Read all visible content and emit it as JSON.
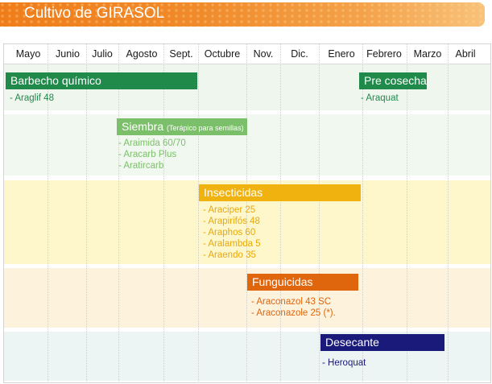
{
  "header": {
    "title": "Cultivo de GIRASOL"
  },
  "months": [
    "Mayo",
    "Junio",
    "Julio",
    "Agosto",
    "Sept.",
    "Octubre",
    "Nov.",
    "Dic.",
    "Enero",
    "Febrero",
    "Marzo",
    "Abril"
  ],
  "phases": {
    "barbecho": {
      "label": "Barbecho químico",
      "color": "#1f8a4a",
      "items": [
        "- Araglif 48"
      ]
    },
    "pre_cosecha": {
      "label": "Pre cosecha",
      "color": "#1f8a4a",
      "items": [
        "- Araquat"
      ]
    },
    "siembra": {
      "label": "Siembra",
      "note": "(Terápico para semillas)",
      "color": "#7cbf6a",
      "items": [
        "- Araimida 60/70",
        "- Aracarb Plus",
        "- Aratircarb"
      ]
    },
    "insecticidas": {
      "label": "Insecticidas",
      "color": "#f0b20f",
      "items": [
        "- Araciper 25",
        "- Arapirifós 48",
        "- Araphos 60",
        "- Aralambda 5",
        "- Araendo 35"
      ]
    },
    "funguicidas": {
      "label": "Funguicidas",
      "color": "#e0660e",
      "items": [
        "- Araconazol 43 SC",
        "- Araconazole 25 (*)."
      ]
    },
    "desecante": {
      "label": "Desecante",
      "color": "#1a1a7a",
      "items": [
        "- Heroquat"
      ]
    }
  }
}
